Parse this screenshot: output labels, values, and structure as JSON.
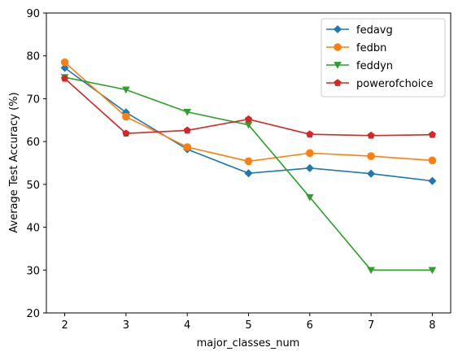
{
  "chart_data": {
    "type": "line",
    "title": "",
    "xlabel": "major_classes_num",
    "ylabel": "Average Test Accuracy (%)",
    "x": [
      2,
      3,
      4,
      5,
      6,
      7,
      8
    ],
    "xlim": [
      1.7,
      8.3
    ],
    "ylim": [
      20,
      90
    ],
    "xticks": [
      2,
      3,
      4,
      5,
      6,
      7,
      8
    ],
    "yticks": [
      20,
      30,
      40,
      50,
      60,
      70,
      80,
      90
    ],
    "grid": false,
    "legend_position": "top-right",
    "series": [
      {
        "name": "fedavg",
        "color": "#1f77b4",
        "marker": "diamond",
        "values": [
          77.2,
          66.8,
          58.2,
          52.6,
          53.8,
          52.5,
          50.8
        ]
      },
      {
        "name": "fedbn",
        "color": "#ff7f0e",
        "marker": "circle",
        "values": [
          78.5,
          65.8,
          58.7,
          55.4,
          57.3,
          56.6,
          55.6
        ]
      },
      {
        "name": "feddyn",
        "color": "#2ca02c",
        "marker": "triangle-down",
        "values": [
          75.0,
          72.1,
          66.9,
          63.9,
          47.0,
          30.0,
          30.0
        ]
      },
      {
        "name": "powerofchoice",
        "color": "#d62728",
        "marker": "pentagon",
        "values": [
          74.7,
          61.9,
          62.6,
          65.2,
          61.7,
          61.4,
          61.6
        ]
      }
    ]
  }
}
